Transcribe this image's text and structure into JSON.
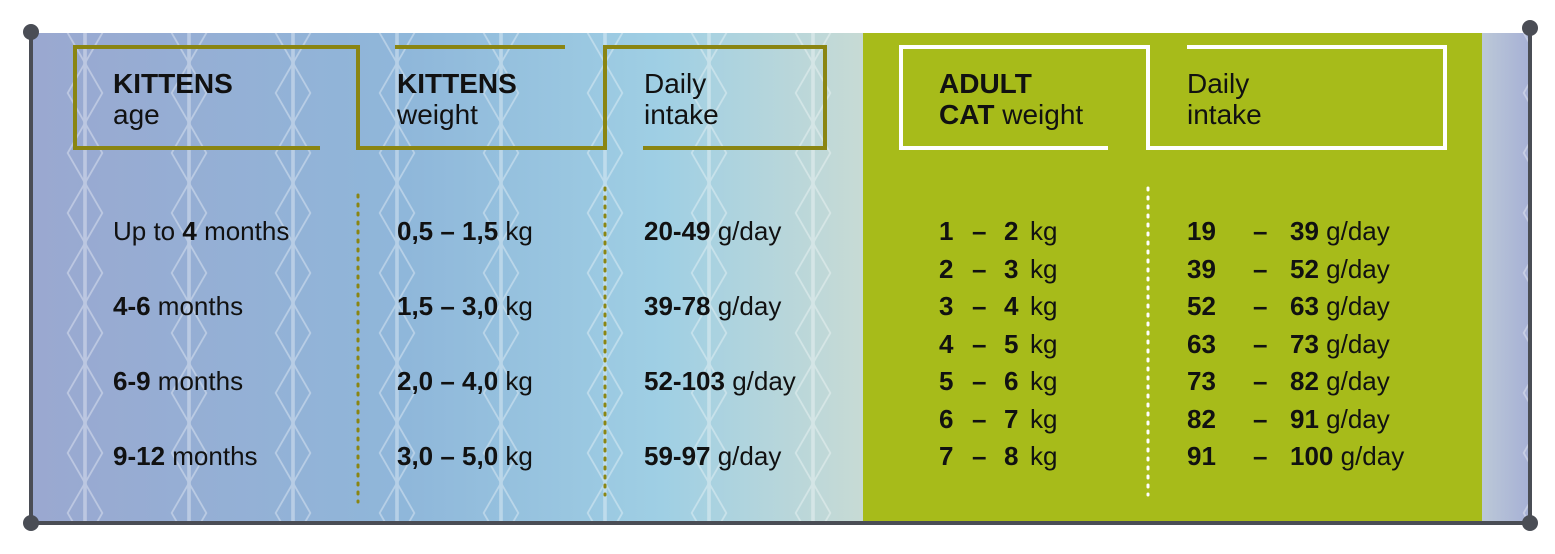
{
  "colors": {
    "olive": "#8a8512",
    "green": "#a7bb1a",
    "frame": "#4a4d55"
  },
  "headers": {
    "kittens_age": {
      "bold": "KITTENS",
      "regular": "age"
    },
    "kittens_weight": {
      "bold": "KITTENS",
      "regular": "weight"
    },
    "kittens_intake": {
      "line1": "Daily",
      "line2": "intake"
    },
    "adult_weight": {
      "bold1": "ADULT",
      "bold2": "CAT",
      "regular": " weight"
    },
    "adult_intake": {
      "line1": "Daily",
      "line2": "intake"
    }
  },
  "kittens": [
    {
      "age_pre": "Up to ",
      "age_bold": "4",
      "age_post": " months",
      "weight_bold": "0,5 – 1,5",
      "weight_unit": " kg",
      "intake_bold": "20-49",
      "intake_unit": " g/day"
    },
    {
      "age_pre": "",
      "age_bold": "4-6",
      "age_post": " months",
      "weight_bold": "1,5 – 3,0",
      "weight_unit": " kg",
      "intake_bold": "39-78",
      "intake_unit": " g/day"
    },
    {
      "age_pre": "",
      "age_bold": "6-9",
      "age_post": " months",
      "weight_bold": "2,0 – 4,0",
      "weight_unit": " kg",
      "intake_bold": "52-103",
      "intake_unit": " g/day"
    },
    {
      "age_pre": "",
      "age_bold": "9-12",
      "age_post": " months",
      "weight_bold": "3,0 – 5,0",
      "weight_unit": " kg",
      "intake_bold": "59-97",
      "intake_unit": " g/day"
    }
  ],
  "adults": [
    {
      "w_from": "1",
      "dash": "–",
      "w_to": "2",
      "w_unit": "kg",
      "i_from": "19",
      "i_to": "39",
      "i_unit": "g/day"
    },
    {
      "w_from": "2",
      "dash": "–",
      "w_to": "3",
      "w_unit": "kg",
      "i_from": "39",
      "i_to": "52",
      "i_unit": "g/day"
    },
    {
      "w_from": "3",
      "dash": "–",
      "w_to": "4",
      "w_unit": "kg",
      "i_from": "52",
      "i_to": "63",
      "i_unit": "g/day"
    },
    {
      "w_from": "4",
      "dash": "–",
      "w_to": "5",
      "w_unit": "kg",
      "i_from": "63",
      "i_to": "73",
      "i_unit": "g/day"
    },
    {
      "w_from": "5",
      "dash": "–",
      "w_to": "6",
      "w_unit": "kg",
      "i_from": "73",
      "i_to": "82",
      "i_unit": "g/day"
    },
    {
      "w_from": "6",
      "dash": "–",
      "w_to": "7",
      "w_unit": "kg",
      "i_from": "82",
      "i_to": "91",
      "i_unit": "g/day"
    },
    {
      "w_from": "7",
      "dash": "–",
      "w_to": "8",
      "w_unit": "kg",
      "i_from": "91",
      "i_to": "100",
      "i_unit": "g/day"
    }
  ]
}
